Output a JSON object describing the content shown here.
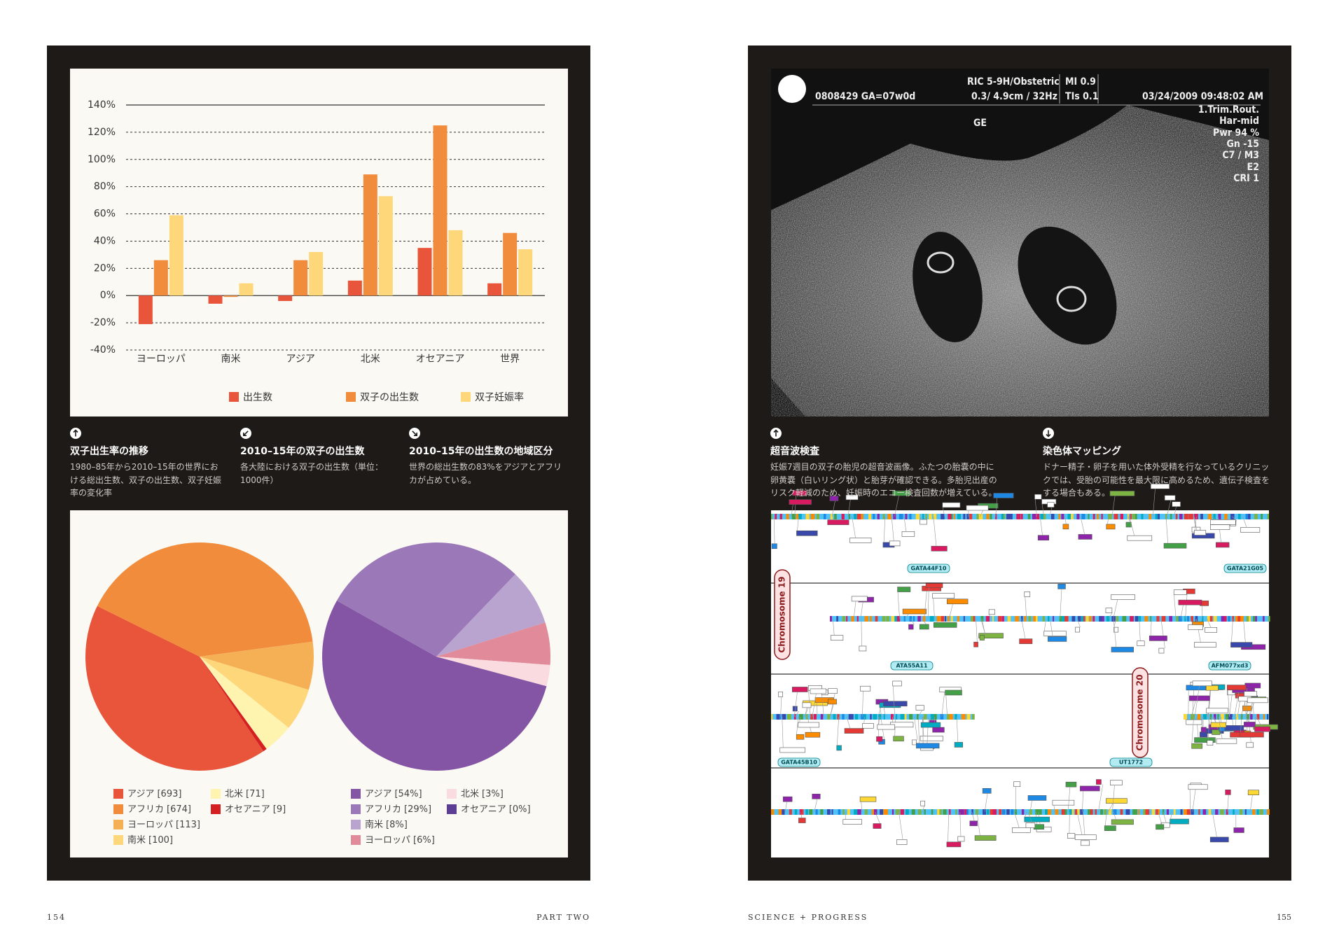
{
  "chart_data": [
    {
      "type": "bar",
      "categories": [
        "ヨーロッパ",
        "南米",
        "アジア",
        "北米",
        "オセアニア",
        "世界"
      ],
      "series": [
        {
          "name": "出生数",
          "color": "#e8553a",
          "values": [
            -21,
            -6,
            -4,
            11,
            35,
            9
          ]
        },
        {
          "name": "双子の出生数",
          "color": "#f08c3c",
          "values": [
            26,
            -1,
            26,
            89,
            125,
            46
          ]
        },
        {
          "name": "双子妊娠率",
          "color": "#fdd77a",
          "values": [
            59,
            9,
            32,
            73,
            48,
            34
          ]
        }
      ],
      "ylim": [
        -40,
        140
      ],
      "yticks": [
        {
          "value": -40,
          "label": "-40%"
        },
        {
          "value": -20,
          "label": "-20%"
        },
        {
          "value": 0,
          "label": "0%"
        },
        {
          "value": 20,
          "label": "20%"
        },
        {
          "value": 40,
          "label": "40%"
        },
        {
          "value": 60,
          "label": "60%"
        },
        {
          "value": 80,
          "label": "80%"
        },
        {
          "value": 100,
          "label": "100%"
        },
        {
          "value": 120,
          "label": "120%"
        },
        {
          "value": 140,
          "label": "140%"
        }
      ],
      "grid": true,
      "legend": "bottom"
    },
    {
      "type": "pie",
      "categories": [
        "アジア",
        "アフリカ",
        "ヨーロッパ",
        "南米",
        "北米",
        "オセアニア"
      ],
      "values": [
        693,
        674,
        113,
        100,
        71,
        9
      ],
      "value_labels": [
        "[693]",
        "[674]",
        "[113]",
        "[100]",
        "[71]",
        "[9]"
      ],
      "colors": [
        "#e8553a",
        "#f08c3c",
        "#f5b055",
        "#fdd77a",
        "#fff3b0",
        "#d42020"
      ],
      "legend": "bottom"
    },
    {
      "type": "pie",
      "categories": [
        "アジア",
        "アフリカ",
        "南米",
        "ヨーロッパ",
        "北米",
        "オセアニア"
      ],
      "values": [
        54,
        29,
        8,
        6,
        3,
        0
      ],
      "value_labels": [
        "[54%]",
        "[29%]",
        "[8%]",
        "[6%]",
        "[3%]",
        "[0%]"
      ],
      "colors": [
        "#8455a4",
        "#9b78b8",
        "#b9a3cf",
        "#e08a9a",
        "#fadbe0",
        "#5c3f94"
      ],
      "legend": "bottom"
    }
  ],
  "captions": [
    {
      "title": "双子出生率の推移",
      "body": "1980–85年から2010–15年の世界における総出生数、双子の出生数、双子妊娠率の変化率"
    },
    {
      "title": "2010–15年の双子の出生数",
      "body": "各大陸における双子の出生数（単位：1000件）"
    },
    {
      "title": "2010–15年の出生数の地域区分",
      "body": "世界の総出生数の83%をアジアとアフリカが占めている。"
    },
    {
      "title": "超音波検査",
      "body": "妊娠7週目の双子の胎児の超音波画像。ふたつの胎嚢の中に卵黄嚢（白いリング状）と胎芽が確認できる。多胎児出産のリスク軽減のため、妊娠時のエコー検査回数が増えている。"
    },
    {
      "title": "染色体マッピング",
      "body": "ドナー精子・卵子を用いた体外受精を行なっているクリニックでは、受胎の可能性を最大限に高めるため、遺伝子検査をする場合もある。"
    }
  ],
  "ultrasound": {
    "overlay": [
      "RIC 5-9H/Obstetric",
      "MI 0.9",
      "0808429 GA=07w0d",
      "0.3/ 4.9cm / 32Hz",
      "TIs 0.1",
      "03/24/2009 09:48:02 AM",
      "1.Trim.Rout.",
      "Har-mid",
      "Pwr 94 %",
      "Gn -15",
      "C7 / M3",
      "E2",
      "CRI 1",
      "GE"
    ]
  },
  "chromosome_map": {
    "chromosomes": [
      "Chromosome 19",
      "Chromosome 20"
    ],
    "markers": [
      "GATA44F10",
      "GATA21G05",
      "ATA55A11",
      "AFM077xd3",
      "GATA45B10",
      "UT1772"
    ]
  },
  "footer": {
    "left_page_number": "154",
    "left_section": "PART TWO",
    "right_section": "SCIENCE + PROGRESS",
    "right_page_number": "155"
  }
}
